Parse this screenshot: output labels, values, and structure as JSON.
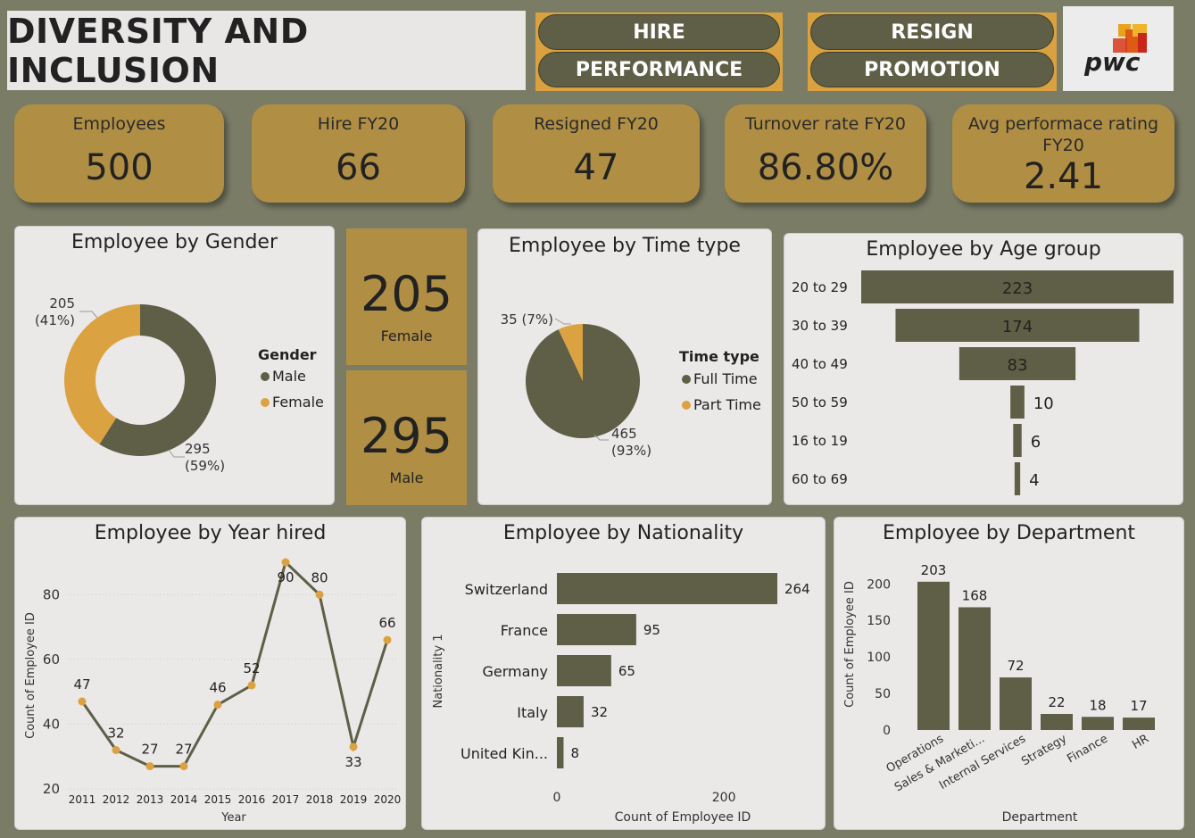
{
  "header": {
    "title": "DIVERSITY AND INCLUSION",
    "nav": [
      "HIRE",
      "PERFORMANCE",
      "RESIGN",
      "PROMOTION"
    ],
    "logo_text": "pwc"
  },
  "kpis": [
    {
      "label": "Employees",
      "value": "500"
    },
    {
      "label": "Hire FY20",
      "value": "66"
    },
    {
      "label": "Resigned FY20",
      "value": "47"
    },
    {
      "label": "Turnover rate FY20",
      "value": "86.80%"
    },
    {
      "label": "Avg performace rating FY20",
      "value": "2.41"
    }
  ],
  "cards": {
    "female": {
      "value": "205",
      "label": "Female"
    },
    "male": {
      "value": "295",
      "label": "Male"
    }
  },
  "colors": {
    "olive": "#5e5f46",
    "gold": "#dba242",
    "bg": "#7a7c66",
    "panel": "#ebe8e8"
  },
  "chart_data": [
    {
      "type": "pie",
      "variant": "donut",
      "title": "Employee by Gender",
      "legend_title": "Gender",
      "categories": [
        "Male",
        "Female"
      ],
      "values": [
        295,
        205
      ],
      "labels": [
        "295\n(59%)",
        "205\n(41%)"
      ],
      "colors": [
        "#5e5f46",
        "#dba242"
      ]
    },
    {
      "type": "pie",
      "title": "Employee by Time type",
      "legend_title": "Time type",
      "categories": [
        "Full Time",
        "Part Time"
      ],
      "values": [
        465,
        35
      ],
      "labels": [
        "465\n(93%)",
        "35 (7%)"
      ],
      "colors": [
        "#5e5f46",
        "#dba242"
      ]
    },
    {
      "type": "bar",
      "orientation": "funnel",
      "title": "Employee by Age group",
      "categories": [
        "20 to 29",
        "30 to 39",
        "40 to 49",
        "50 to 59",
        "16 to 19",
        "60 to 69"
      ],
      "values": [
        223,
        174,
        83,
        10,
        6,
        4
      ]
    },
    {
      "type": "line",
      "title": "Employee by Year hired",
      "xlabel": "Year",
      "ylabel": "Count of Employee ID",
      "x": [
        "2011",
        "2012",
        "2013",
        "2014",
        "2015",
        "2016",
        "2017",
        "2018",
        "2019",
        "2020"
      ],
      "values": [
        47,
        32,
        27,
        27,
        46,
        52,
        90,
        80,
        33,
        66
      ],
      "yticks": [
        "20",
        "40",
        "60",
        "80"
      ],
      "ylim": [
        20,
        90
      ]
    },
    {
      "type": "bar",
      "orientation": "horizontal",
      "title": "Employee by Nationality",
      "xlabel": "Count of Employee ID",
      "ylabel": "Nationality 1",
      "categories": [
        "Switzerland",
        "France",
        "Germany",
        "Italy",
        "United Kin..."
      ],
      "values": [
        264,
        95,
        65,
        32,
        8
      ],
      "xticks": [
        "0",
        "200"
      ],
      "xlim": [
        0,
        264
      ]
    },
    {
      "type": "bar",
      "title": "Employee by Department",
      "xlabel": "Department",
      "ylabel": "Count of Employee ID",
      "categories": [
        "Operations",
        "Sales & Marketi...",
        "Internal Services",
        "Strategy",
        "Finance",
        "HR"
      ],
      "values": [
        203,
        168,
        72,
        22,
        18,
        17
      ],
      "yticks": [
        "0",
        "50",
        "100",
        "150",
        "200"
      ],
      "ylim": [
        0,
        215
      ]
    }
  ]
}
